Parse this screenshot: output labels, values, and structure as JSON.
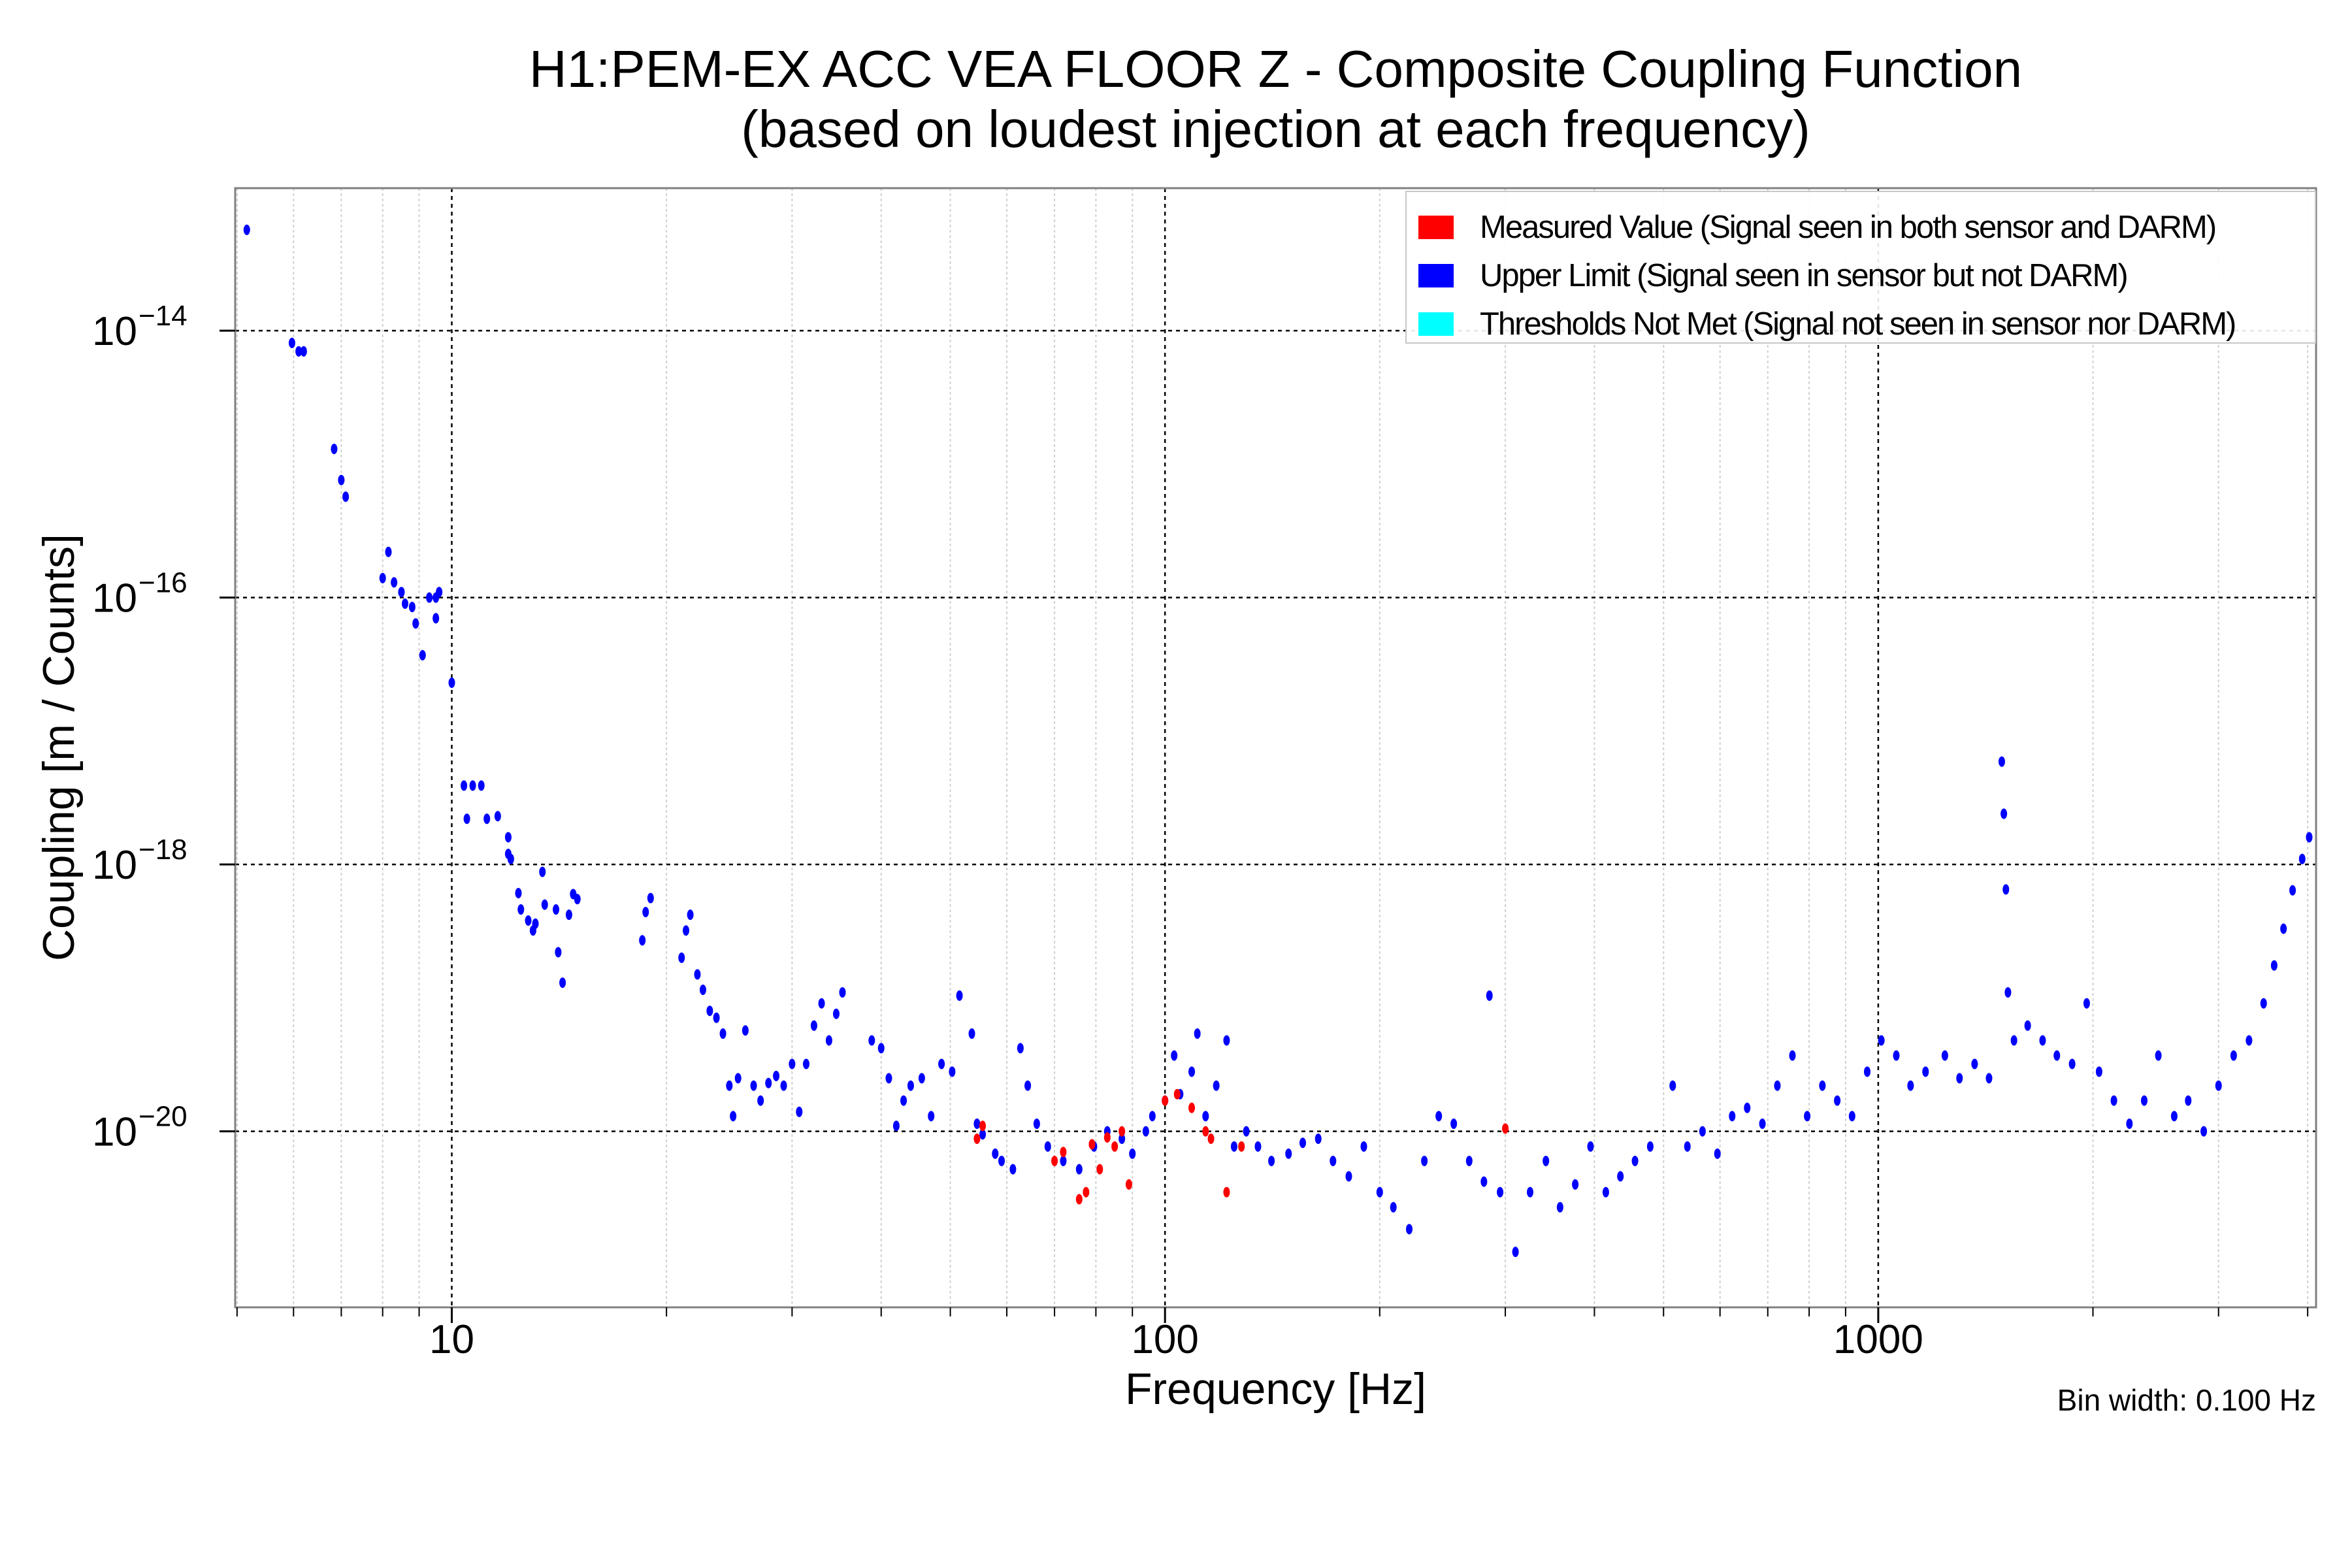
{
  "chart_data": {
    "type": "scatter",
    "title": [
      "H1:PEM-EX ACC VEA FLOOR Z - Composite Coupling Function",
      "(based on loudest injection at each frequency)"
    ],
    "xlabel": "Frequency [Hz]",
    "ylabel": "Coupling [m / Counts]",
    "xscale": "log",
    "yscale": "log",
    "xlim": [
      4.97,
      4110
    ],
    "ylim": [
      4.8e-22,
      1.17e-13
    ],
    "x_ticks": [
      {
        "value": 10,
        "label": "10"
      },
      {
        "value": 100,
        "label": "100"
      },
      {
        "value": 1000,
        "label": "1000"
      }
    ],
    "y_ticks": [
      {
        "value": 1e-14,
        "base": "10",
        "exp": "−14"
      },
      {
        "value": 1e-16,
        "base": "10",
        "exp": "−16"
      },
      {
        "value": 1e-18,
        "base": "10",
        "exp": "−18"
      },
      {
        "value": 1e-20,
        "base": "10",
        "exp": "−20"
      }
    ],
    "grid": true,
    "legend_position": "top-right",
    "annotation": "Bin width: 0.100 Hz",
    "series": [
      {
        "name": "Measured Value (Signal seen in both sensor and DARM)",
        "color": "#ff0000",
        "points": [
          [
            54.5,
            8.8e-21
          ],
          [
            55.5,
            1.1e-20
          ],
          [
            70,
            6e-21
          ],
          [
            72,
            7e-21
          ],
          [
            75.8,
            3.1e-21
          ],
          [
            77.5,
            3.5e-21
          ],
          [
            79,
            8e-21
          ],
          [
            81,
            5.2e-21
          ],
          [
            83,
            9e-21
          ],
          [
            85,
            7.7e-21
          ],
          [
            87,
            1e-20
          ],
          [
            89,
            4e-21
          ],
          [
            100,
            1.7e-20
          ],
          [
            104,
            1.9e-20
          ],
          [
            109,
            1.5e-20
          ],
          [
            114,
            1e-20
          ],
          [
            116,
            8.8e-21
          ],
          [
            122,
            3.5e-21
          ],
          [
            128,
            7.7e-21
          ],
          [
            300,
            1.05e-20
          ]
        ]
      },
      {
        "name": "Upper Limit (Signal seen in sensor but not DARM)",
        "color": "#0000ff",
        "points": [
          [
            5.16,
            5.7e-14
          ],
          [
            5.97,
            8.1e-15
          ],
          [
            6.1,
            7e-15
          ],
          [
            6.2,
            7e-15
          ],
          [
            6.84,
            1.3e-15
          ],
          [
            7.0,
            7.6e-16
          ],
          [
            7.1,
            5.7e-16
          ],
          [
            8.15,
            2.2e-16
          ],
          [
            8.0,
            1.4e-16
          ],
          [
            8.3,
            1.3e-16
          ],
          [
            8.5,
            1.1e-16
          ],
          [
            8.6,
            9e-17
          ],
          [
            8.8,
            8.5e-17
          ],
          [
            8.9,
            6.4e-17
          ],
          [
            9.1,
            3.7e-17
          ],
          [
            9.3,
            1e-16
          ],
          [
            9.5,
            1e-16
          ],
          [
            9.5,
            7e-17
          ],
          [
            9.6,
            1.1e-16
          ],
          [
            10.0,
            2.3e-17
          ],
          [
            10.4,
            3.9e-18
          ],
          [
            10.7,
            3.9e-18
          ],
          [
            11.0,
            3.9e-18
          ],
          [
            10.5,
            2.2e-18
          ],
          [
            11.2,
            2.2e-18
          ],
          [
            11.6,
            2.3e-18
          ],
          [
            12.0,
            1.6e-18
          ],
          [
            12.0,
            1.2e-18
          ],
          [
            12.1,
            1.1e-18
          ],
          [
            12.4,
            6.1e-19
          ],
          [
            12.5,
            4.6e-19
          ],
          [
            12.8,
            3.8e-19
          ],
          [
            13.0,
            3.2e-19
          ],
          [
            13.1,
            3.6e-19
          ],
          [
            13.4,
            8.8e-19
          ],
          [
            13.5,
            5e-19
          ],
          [
            14.0,
            4.6e-19
          ],
          [
            14.1,
            2.2e-19
          ],
          [
            14.3,
            1.3e-19
          ],
          [
            14.6,
            4.2e-19
          ],
          [
            14.8,
            6e-19
          ],
          [
            15.0,
            5.5e-19
          ],
          [
            18.5,
            2.7e-19
          ],
          [
            18.7,
            4.4e-19
          ],
          [
            19.0,
            5.6e-19
          ],
          [
            21.0,
            2e-19
          ],
          [
            21.3,
            3.2e-19
          ],
          [
            21.6,
            4.2e-19
          ],
          [
            22.1,
            1.5e-19
          ],
          [
            22.5,
            1.15e-19
          ],
          [
            23.0,
            8e-20
          ],
          [
            23.5,
            7.1e-20
          ],
          [
            24.0,
            5.4e-20
          ],
          [
            24.5,
            2.2e-20
          ],
          [
            24.8,
            1.3e-20
          ],
          [
            25.2,
            2.5e-20
          ],
          [
            25.8,
            5.7e-20
          ],
          [
            26.5,
            2.2e-20
          ],
          [
            27.1,
            1.7e-20
          ],
          [
            27.8,
            2.3e-20
          ],
          [
            28.5,
            2.6e-20
          ],
          [
            29.2,
            2.2e-20
          ],
          [
            30.0,
            3.2e-20
          ],
          [
            30.7,
            1.4e-20
          ],
          [
            31.4,
            3.2e-20
          ],
          [
            32.2,
            6.2e-20
          ],
          [
            33.0,
            9.1e-20
          ],
          [
            33.8,
            4.8e-20
          ],
          [
            34.6,
            7.6e-20
          ],
          [
            35.3,
            1.1e-19
          ],
          [
            38.8,
            4.8e-20
          ],
          [
            40.0,
            4.2e-20
          ],
          [
            41.0,
            2.5e-20
          ],
          [
            42.0,
            1.1e-20
          ],
          [
            43.0,
            1.7e-20
          ],
          [
            44.0,
            2.2e-20
          ],
          [
            45.6,
            2.5e-20
          ],
          [
            47.0,
            1.3e-20
          ],
          [
            48.6,
            3.2e-20
          ],
          [
            50.3,
            2.8e-20
          ],
          [
            51.5,
            1.04e-19
          ],
          [
            53.6,
            5.4e-20
          ],
          [
            54.5,
            1.14e-20
          ],
          [
            55.5,
            9.5e-21
          ],
          [
            57.8,
            6.8e-21
          ],
          [
            59,
            6e-21
          ],
          [
            61.2,
            5.2e-21
          ],
          [
            62.7,
            4.2e-20
          ],
          [
            64.2,
            2.2e-20
          ],
          [
            66.1,
            1.14e-20
          ],
          [
            68.5,
            7.7e-21
          ],
          [
            72,
            6e-21
          ],
          [
            75.8,
            5.2e-21
          ],
          [
            79.5,
            7.7e-21
          ],
          [
            83,
            1e-20
          ],
          [
            87,
            8.8e-21
          ],
          [
            90,
            6.8e-21
          ],
          [
            94,
            1e-20
          ],
          [
            96,
            1.3e-20
          ],
          [
            100,
            1.7e-20
          ],
          [
            103,
            3.7e-20
          ],
          [
            105,
            1.9e-20
          ],
          [
            109,
            2.8e-20
          ],
          [
            111,
            5.4e-20
          ],
          [
            114,
            1.3e-20
          ],
          [
            118,
            2.2e-20
          ],
          [
            122,
            4.8e-20
          ],
          [
            125,
            7.7e-21
          ],
          [
            130,
            1e-20
          ],
          [
            135,
            7.7e-21
          ],
          [
            141,
            6e-21
          ],
          [
            149,
            6.8e-21
          ],
          [
            156,
            8.2e-21
          ],
          [
            164,
            8.8e-21
          ],
          [
            172,
            6e-21
          ],
          [
            181,
            4.6e-21
          ],
          [
            190,
            7.7e-21
          ],
          [
            200,
            3.5e-21
          ],
          [
            209,
            2.7e-21
          ],
          [
            220,
            1.85e-21
          ],
          [
            231,
            6e-21
          ],
          [
            242,
            1.3e-20
          ],
          [
            254,
            1.14e-20
          ],
          [
            267,
            6e-21
          ],
          [
            280,
            4.2e-21
          ],
          [
            285,
            1.04e-19
          ],
          [
            295,
            3.5e-21
          ],
          [
            310,
            1.25e-21
          ],
          [
            325,
            3.5e-21
          ],
          [
            342,
            6e-21
          ],
          [
            358,
            2.7e-21
          ],
          [
            376,
            4e-21
          ],
          [
            395,
            7.7e-21
          ],
          [
            415,
            3.5e-21
          ],
          [
            435,
            4.6e-21
          ],
          [
            456,
            6e-21
          ],
          [
            479,
            7.7e-21
          ],
          [
            515,
            2.2e-20
          ],
          [
            540,
            7.7e-21
          ],
          [
            567,
            1e-20
          ],
          [
            595,
            6.8e-21
          ],
          [
            624,
            1.3e-20
          ],
          [
            655,
            1.5e-20
          ],
          [
            688,
            1.14e-20
          ],
          [
            722,
            2.2e-20
          ],
          [
            758,
            3.7e-20
          ],
          [
            795,
            1.3e-20
          ],
          [
            835,
            2.2e-20
          ],
          [
            876,
            1.7e-20
          ],
          [
            919,
            1.3e-20
          ],
          [
            965,
            2.8e-20
          ],
          [
            1010,
            4.8e-20
          ],
          [
            1060,
            3.7e-20
          ],
          [
            1110,
            2.2e-20
          ],
          [
            1165,
            2.8e-20
          ],
          [
            1240,
            3.7e-20
          ],
          [
            1300,
            2.5e-20
          ],
          [
            1365,
            3.2e-20
          ],
          [
            1430,
            2.5e-20
          ],
          [
            1490,
            5.9e-18
          ],
          [
            1500,
            2.4e-18
          ],
          [
            1510,
            6.5e-19
          ],
          [
            1520,
            1.1e-19
          ],
          [
            1550,
            4.8e-20
          ],
          [
            1620,
            6.2e-20
          ],
          [
            1700,
            4.8e-20
          ],
          [
            1780,
            3.7e-20
          ],
          [
            1870,
            3.2e-20
          ],
          [
            1960,
            9.1e-20
          ],
          [
            2040,
            2.8e-20
          ],
          [
            2140,
            1.7e-20
          ],
          [
            2250,
            1.14e-20
          ],
          [
            2360,
            1.7e-20
          ],
          [
            2470,
            3.7e-20
          ],
          [
            2600,
            1.3e-20
          ],
          [
            2720,
            1.7e-20
          ],
          [
            2860,
            1e-20
          ],
          [
            3000,
            2.2e-20
          ],
          [
            3150,
            3.7e-20
          ],
          [
            3310,
            4.8e-20
          ],
          [
            3470,
            9.1e-20
          ],
          [
            3590,
            1.75e-19
          ],
          [
            3700,
            3.3e-19
          ],
          [
            3810,
            6.4e-19
          ],
          [
            3930,
            1.1e-18
          ],
          [
            4020,
            1.6e-18
          ]
        ]
      },
      {
        "name": "Thresholds Not Met (Signal not seen in sensor nor DARM)",
        "color": "#00ffff",
        "points": []
      }
    ]
  }
}
